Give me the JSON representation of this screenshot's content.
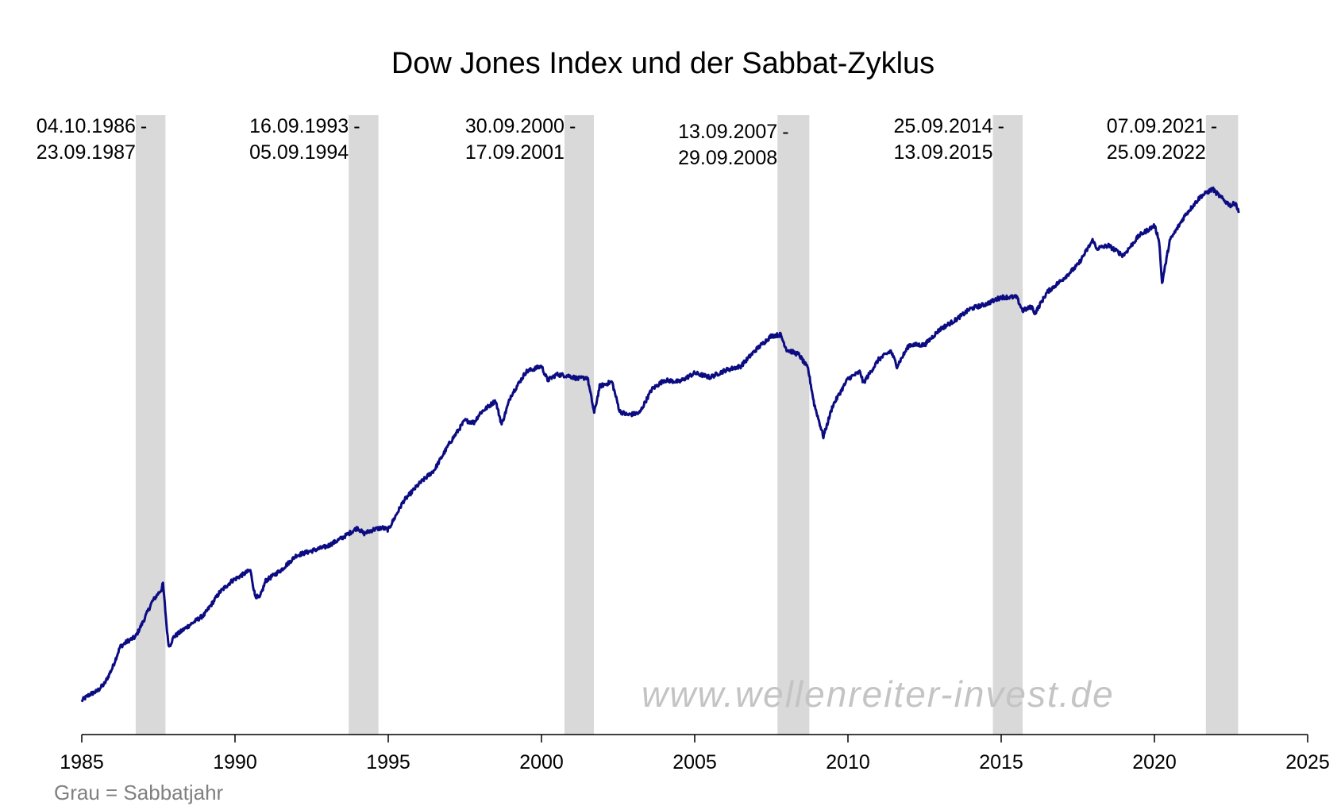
{
  "chart_data": {
    "type": "line",
    "title": "Dow Jones Index und der Sabbat-Zyklus",
    "xlabel": "",
    "ylabel": "",
    "xlim": [
      1985,
      2025
    ],
    "y_axis_visible": false,
    "y_scale": "log",
    "ylim": [
      1200,
      42000
    ],
    "grid": false,
    "x_ticks": [
      "1985",
      "1990",
      "1995",
      "2000",
      "2005",
      "2010",
      "2015",
      "2020",
      "2025"
    ],
    "x_tick_values": [
      1985,
      1990,
      1995,
      2000,
      2005,
      2010,
      2015,
      2020,
      2025
    ],
    "colors": {
      "line": "#0c0c82",
      "band": "#d9d9d9",
      "note": "#808080",
      "watermark": "#c4c4c4"
    },
    "series": [
      {
        "x": [
          1985.0,
          1985.25,
          1985.5,
          1985.75,
          1986.0,
          1986.25,
          1986.5,
          1986.75,
          1987.0,
          1987.3,
          1987.6,
          1987.65,
          1987.8,
          1987.85,
          1988.0,
          1988.5,
          1989.0,
          1989.5,
          1989.9,
          1990.5,
          1990.65,
          1990.8,
          1991.0,
          1991.5,
          1992.0,
          1992.5,
          1993.0,
          1993.5,
          1994.0,
          1994.2,
          1994.5,
          1994.8,
          1995.0,
          1995.5,
          1996.0,
          1996.5,
          1997.0,
          1997.5,
          1997.8,
          1998.0,
          1998.5,
          1998.7,
          1999.0,
          1999.5,
          2000.0,
          2000.2,
          2000.5,
          2000.9,
          2001.2,
          2001.5,
          2001.72,
          2001.9,
          2002.3,
          2002.55,
          2002.8,
          2003.2,
          2003.6,
          2004.0,
          2004.5,
          2005.0,
          2005.5,
          2006.0,
          2006.5,
          2007.0,
          2007.5,
          2007.8,
          2008.0,
          2008.4,
          2008.7,
          2008.9,
          2009.2,
          2009.5,
          2010.0,
          2010.4,
          2010.5,
          2011.0,
          2011.4,
          2011.6,
          2012.0,
          2012.5,
          2013.0,
          2013.5,
          2014.0,
          2014.5,
          2015.0,
          2015.5,
          2015.7,
          2016.0,
          2016.1,
          2016.5,
          2017.0,
          2017.5,
          2018.0,
          2018.1,
          2018.5,
          2018.95,
          2019.0,
          2019.5,
          2020.0,
          2020.15,
          2020.25,
          2020.5,
          2021.0,
          2021.5,
          2021.9,
          2022.0,
          2022.3,
          2022.5,
          2022.65,
          2022.75
        ],
        "y": [
          1250,
          1300,
          1330,
          1400,
          1550,
          1780,
          1850,
          1900,
          2100,
          2400,
          2600,
          2700,
          1900,
          1780,
          1900,
          2050,
          2200,
          2550,
          2750,
          2950,
          2500,
          2450,
          2750,
          2950,
          3250,
          3350,
          3450,
          3650,
          3900,
          3750,
          3850,
          3900,
          3850,
          4650,
          5200,
          5700,
          6800,
          7900,
          7800,
          8300,
          9000,
          7700,
          9300,
          10900,
          11300,
          10300,
          10700,
          10600,
          10400,
          10500,
          8300,
          9900,
          10200,
          8400,
          8200,
          8300,
          9700,
          10300,
          10200,
          10800,
          10500,
          11000,
          11300,
          12600,
          13800,
          13900,
          12600,
          12200,
          11100,
          8800,
          7100,
          8700,
          10400,
          10900,
          10100,
          11800,
          12500,
          11300,
          13000,
          13000,
          14400,
          15300,
          16500,
          17000,
          17800,
          17800,
          16300,
          16700,
          16000,
          18400,
          20000,
          22000,
          26000,
          24500,
          25000,
          23500,
          23500,
          26700,
          28500,
          26000,
          19500,
          25800,
          30500,
          34500,
          36300,
          35500,
          33500,
          32500,
          33200,
          31000
        ]
      }
    ],
    "bands": [
      {
        "start": 1986.76,
        "end": 1987.73,
        "label_start": "04.10.1986",
        "label_end": "23.09.1987"
      },
      {
        "start": 1993.71,
        "end": 1994.68,
        "label_start": "16.09.1993",
        "label_end": "05.09.1994"
      },
      {
        "start": 2000.75,
        "end": 2001.71,
        "label_start": "30.09.2000",
        "label_end": "17.09.2001"
      },
      {
        "start": 2007.7,
        "end": 2008.74,
        "label_start": "13.09.2007",
        "label_end": "29.09.2008"
      },
      {
        "start": 2014.73,
        "end": 2015.7,
        "label_start": "25.09.2014",
        "label_end": "13.09.2015"
      },
      {
        "start": 2021.68,
        "end": 2022.73,
        "label_start": "07.09.2021",
        "label_end": "25.09.2022"
      }
    ],
    "band_label_separator": "-",
    "note": "Grau =  Sabbatjahr",
    "watermark": "www.wellenreiter-invest.de"
  }
}
